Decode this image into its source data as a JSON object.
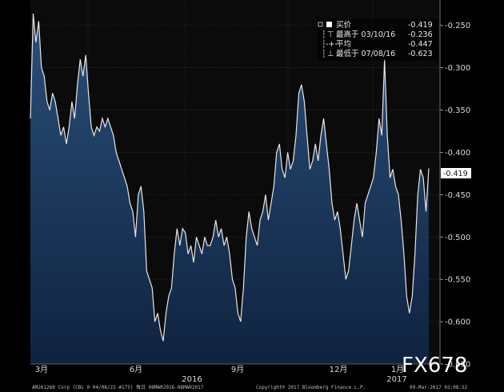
{
  "chart_data": {
    "type": "area",
    "ylim": [
      -0.65,
      -0.22
    ],
    "y_ticks": [
      "-0.250",
      "-0.300",
      "-0.350",
      "-0.400",
      "-0.450",
      "-0.500",
      "-0.550",
      "-0.600",
      "-0.650"
    ],
    "x_tick_labels": [
      "3月",
      "6月",
      "9月",
      "12月",
      "1月"
    ],
    "x_year_labels": [
      "2016",
      "2017"
    ],
    "last_value_label": "-0.419",
    "legend": {
      "current": {
        "label": "买价",
        "value": "-0.419"
      },
      "high": {
        "label": "最高于 03/10/16",
        "value": "-0.236"
      },
      "average": {
        "label": "平均",
        "value": "-0.447"
      },
      "low": {
        "label": "最低于 07/08/16",
        "value": "-0.623"
      }
    },
    "series": [
      {
        "values": [
          -0.36,
          -0.236,
          -0.27,
          -0.245,
          -0.3,
          -0.31,
          -0.34,
          -0.35,
          -0.33,
          -0.34,
          -0.36,
          -0.38,
          -0.37,
          -0.39,
          -0.37,
          -0.34,
          -0.36,
          -0.32,
          -0.29,
          -0.31,
          -0.285,
          -0.33,
          -0.37,
          -0.38,
          -0.37,
          -0.375,
          -0.36,
          -0.37,
          -0.36,
          -0.37,
          -0.38,
          -0.4,
          -0.41,
          -0.42,
          -0.43,
          -0.44,
          -0.46,
          -0.47,
          -0.5,
          -0.45,
          -0.44,
          -0.47,
          -0.54,
          -0.55,
          -0.56,
          -0.6,
          -0.59,
          -0.61,
          -0.623,
          -0.59,
          -0.57,
          -0.56,
          -0.52,
          -0.49,
          -0.51,
          -0.49,
          -0.495,
          -0.52,
          -0.51,
          -0.53,
          -0.5,
          -0.51,
          -0.52,
          -0.5,
          -0.51,
          -0.51,
          -0.5,
          -0.48,
          -0.5,
          -0.49,
          -0.51,
          -0.5,
          -0.52,
          -0.55,
          -0.56,
          -0.59,
          -0.6,
          -0.56,
          -0.5,
          -0.47,
          -0.49,
          -0.5,
          -0.51,
          -0.48,
          -0.47,
          -0.45,
          -0.48,
          -0.46,
          -0.44,
          -0.4,
          -0.39,
          -0.42,
          -0.43,
          -0.4,
          -0.42,
          -0.41,
          -0.38,
          -0.33,
          -0.32,
          -0.34,
          -0.38,
          -0.42,
          -0.41,
          -0.39,
          -0.41,
          -0.38,
          -0.36,
          -0.39,
          -0.42,
          -0.46,
          -0.48,
          -0.47,
          -0.49,
          -0.52,
          -0.55,
          -0.54,
          -0.51,
          -0.48,
          -0.46,
          -0.48,
          -0.5,
          -0.46,
          -0.45,
          -0.44,
          -0.43,
          -0.4,
          -0.36,
          -0.38,
          -0.29,
          -0.38,
          -0.43,
          -0.42,
          -0.44,
          -0.45,
          -0.48,
          -0.52,
          -0.57,
          -0.59,
          -0.57,
          -0.52,
          -0.45,
          -0.42,
          -0.43,
          -0.47,
          -0.419
        ]
      }
    ]
  },
  "footer": {
    "left": "AM261260 Corp (CBL 0 04/08/22 #175)  每日 08MAR2016-08MAR2017",
    "center": "Copyright® 2017 Bloomberg Finance L.P.",
    "right": "09-Mar-2017 02:08:52"
  },
  "watermark": "FX678"
}
